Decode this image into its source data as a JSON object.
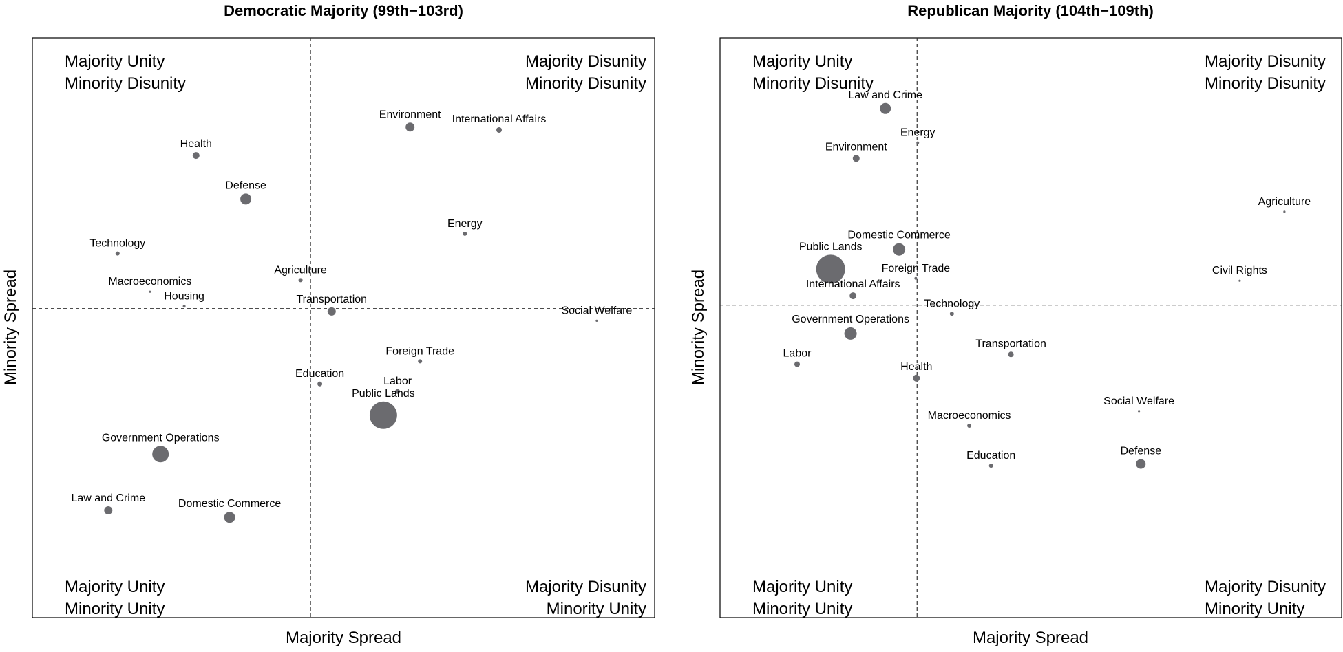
{
  "chart_data": [
    {
      "type": "scatter",
      "title": "Democratic Majority (99th−103rd)",
      "xlabel": "Majority Spread",
      "ylabel": "Minority Spread",
      "xlim": [
        0,
        1
      ],
      "ylim": [
        0,
        1
      ],
      "grid": false,
      "reference_lines": {
        "x": 0.447,
        "y": 0.533
      },
      "quadrant_labels": {
        "top_left": [
          "Majority Unity",
          "Minority Disunity"
        ],
        "top_right": [
          "Majority Disunity",
          "Minority Disunity"
        ],
        "bottom_left": [
          "Majority Unity",
          "Minority Unity"
        ],
        "bottom_right": [
          "Majority Disunity",
          "Minority Unity"
        ]
      },
      "points": [
        {
          "label": "Health",
          "x": 0.263,
          "y": 0.797,
          "size": 25
        },
        {
          "label": "Defense",
          "x": 0.343,
          "y": 0.722,
          "size": 64
        },
        {
          "label": "Technology",
          "x": 0.137,
          "y": 0.628,
          "size": 9
        },
        {
          "label": "Macroeconomics",
          "x": 0.189,
          "y": 0.562,
          "size": 2.5
        },
        {
          "label": "Housing",
          "x": 0.244,
          "y": 0.537,
          "size": 4
        },
        {
          "label": "Agriculture",
          "x": 0.431,
          "y": 0.582,
          "size": 9
        },
        {
          "label": "Transportation",
          "x": 0.481,
          "y": 0.528,
          "size": 36
        },
        {
          "label": "Environment",
          "x": 0.607,
          "y": 0.846,
          "size": 42
        },
        {
          "label": "International Affairs",
          "x": 0.75,
          "y": 0.841,
          "size": 16
        },
        {
          "label": "Energy",
          "x": 0.695,
          "y": 0.662,
          "size": 9
        },
        {
          "label": "Social Welfare",
          "x": 0.907,
          "y": 0.512,
          "size": 2.5
        },
        {
          "label": "Foreign Trade",
          "x": 0.623,
          "y": 0.442,
          "size": 9
        },
        {
          "label": "Education",
          "x": 0.462,
          "y": 0.403,
          "size": 12
        },
        {
          "label": "Labor",
          "x": 0.587,
          "y": 0.39,
          "size": 12
        },
        {
          "label": "Public Lands",
          "x": 0.564,
          "y": 0.349,
          "size": 400
        },
        {
          "label": "Government Operations",
          "x": 0.206,
          "y": 0.282,
          "size": 144
        },
        {
          "label": "Law and Crime",
          "x": 0.122,
          "y": 0.185,
          "size": 36
        },
        {
          "label": "Domestic Commerce",
          "x": 0.317,
          "y": 0.173,
          "size": 64
        }
      ]
    },
    {
      "type": "scatter",
      "title": "Republican Majority (104th−109th)",
      "xlabel": "Majority Spread",
      "ylabel": "Minority Spread",
      "xlim": [
        0,
        1
      ],
      "ylim": [
        0,
        1
      ],
      "grid": false,
      "reference_lines": {
        "x": 0.317,
        "y": 0.539
      },
      "quadrant_labels": {
        "top_left": [
          "Majority Unity",
          "Minority Disunity"
        ],
        "top_right": [
          "Majority Disunity",
          "Minority Disunity"
        ],
        "bottom_left": [
          "Majority Unity",
          "Minority Unity"
        ],
        "bottom_right": [
          "Majority Disunity",
          "Minority Unity"
        ]
      },
      "points": [
        {
          "label": "Law and Crime",
          "x": 0.266,
          "y": 0.878,
          "size": 64
        },
        {
          "label": "Energy",
          "x": 0.318,
          "y": 0.819,
          "size": 4
        },
        {
          "label": "Environment",
          "x": 0.219,
          "y": 0.792,
          "size": 25
        },
        {
          "label": "Domestic Commerce",
          "x": 0.288,
          "y": 0.635,
          "size": 81
        },
        {
          "label": "Public Lands",
          "x": 0.178,
          "y": 0.601,
          "size": 441
        },
        {
          "label": "Foreign Trade",
          "x": 0.315,
          "y": 0.585,
          "size": 4
        },
        {
          "label": "International Affairs",
          "x": 0.214,
          "y": 0.555,
          "size": 25
        },
        {
          "label": "Technology",
          "x": 0.373,
          "y": 0.524,
          "size": 9
        },
        {
          "label": "Government Operations",
          "x": 0.21,
          "y": 0.49,
          "size": 81
        },
        {
          "label": "Transportation",
          "x": 0.468,
          "y": 0.454,
          "size": 16
        },
        {
          "label": "Labor",
          "x": 0.124,
          "y": 0.437,
          "size": 16
        },
        {
          "label": "Health",
          "x": 0.316,
          "y": 0.413,
          "size": 25
        },
        {
          "label": "Macroeconomics",
          "x": 0.401,
          "y": 0.331,
          "size": 9
        },
        {
          "label": "Education",
          "x": 0.436,
          "y": 0.262,
          "size": 9
        },
        {
          "label": "Agriculture",
          "x": 0.908,
          "y": 0.7,
          "size": 2.5
        },
        {
          "label": "Civil Rights",
          "x": 0.836,
          "y": 0.581,
          "size": 2.5
        },
        {
          "label": "Social Welfare",
          "x": 0.674,
          "y": 0.356,
          "size": 2.5
        },
        {
          "label": "Defense",
          "x": 0.677,
          "y": 0.265,
          "size": 49
        }
      ]
    }
  ],
  "colors": {
    "point": "#6b6b6f",
    "frame": "#000000",
    "reference_line": "#333333"
  }
}
